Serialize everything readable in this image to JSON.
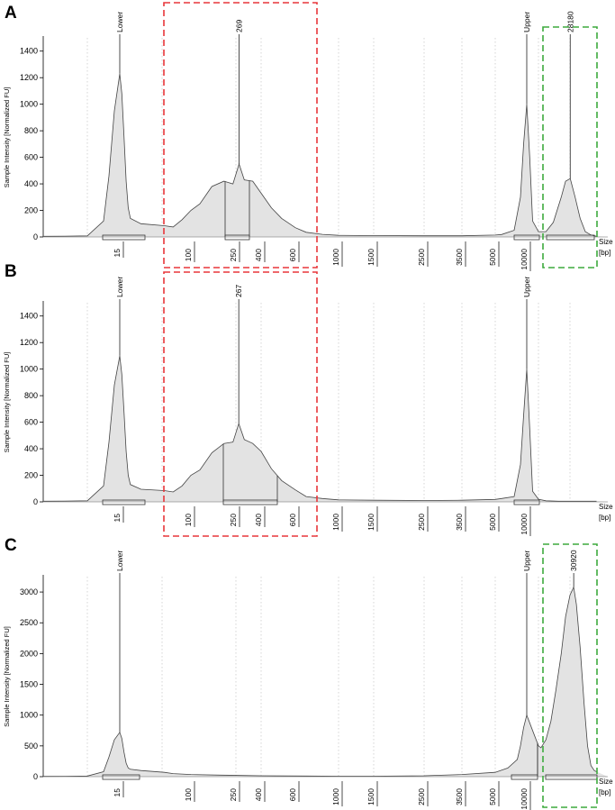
{
  "chart_data": [
    {
      "panel": "A",
      "type": "line",
      "ylabel": "Sample Intensity [Normalized FU]",
      "xlabel_1": "Size",
      "xlabel_2": "[bp]",
      "ylim": [
        0,
        1500
      ],
      "yticks": [
        0,
        200,
        400,
        600,
        800,
        1000,
        1200,
        1400
      ],
      "x_tick_labels": [
        "15",
        "100",
        "250",
        "400",
        "600",
        "1000",
        "1500",
        "2500",
        "3500",
        "5000",
        "10000"
      ],
      "peak_labels": [
        {
          "label": "Lower",
          "x": 15,
          "value": 1230
        },
        {
          "label": "269",
          "x": 269,
          "value": 550
        },
        {
          "label": "Upper",
          "x": 10000,
          "value": 1000
        },
        {
          "label": "28180",
          "x": 28180,
          "value": 440
        }
      ],
      "series": [
        {
          "name": "Sample",
          "points": [
            [
              1,
              5
            ],
            [
              5,
              6
            ],
            [
              9,
              8
            ],
            [
              12,
              120
            ],
            [
              13,
              460
            ],
            [
              14,
              950
            ],
            [
              15,
              1230
            ],
            [
              16,
              1080
            ],
            [
              17,
              760
            ],
            [
              18,
              420
            ],
            [
              19,
              220
            ],
            [
              20,
              140
            ],
            [
              25,
              100
            ],
            [
              40,
              85
            ],
            [
              60,
              75
            ],
            [
              80,
              130
            ],
            [
              100,
              200
            ],
            [
              130,
              250
            ],
            [
              170,
              380
            ],
            [
              210,
              420
            ],
            [
              240,
              400
            ],
            [
              269,
              550
            ],
            [
              300,
              430
            ],
            [
              350,
              420
            ],
            [
              400,
              330
            ],
            [
              460,
              220
            ],
            [
              520,
              140
            ],
            [
              600,
              70
            ],
            [
              700,
              35
            ],
            [
              850,
              20
            ],
            [
              1000,
              12
            ],
            [
              1500,
              10
            ],
            [
              2500,
              9
            ],
            [
              3500,
              9
            ],
            [
              5000,
              14
            ],
            [
              6000,
              18
            ],
            [
              8000,
              50
            ],
            [
              9000,
              300
            ],
            [
              9500,
              700
            ],
            [
              10000,
              1000
            ],
            [
              10500,
              600
            ],
            [
              11000,
              120
            ],
            [
              12000,
              40
            ],
            [
              15000,
              40
            ],
            [
              18000,
              110
            ],
            [
              22000,
              300
            ],
            [
              25000,
              420
            ],
            [
              28180,
              440
            ],
            [
              32000,
              300
            ],
            [
              36000,
              140
            ],
            [
              40000,
              40
            ],
            [
              45000,
              15
            ],
            [
              50000,
              5
            ]
          ]
        }
      ],
      "highlight_boxes": [
        {
          "color": "#e8363a",
          "range": [
            60,
            700
          ]
        },
        {
          "color": "#3daa3d",
          "range": [
            20000,
            60000
          ]
        }
      ]
    },
    {
      "panel": "B",
      "type": "line",
      "ylabel": "Sample Intensity [Normalized FU]",
      "xlabel_1": "Size",
      "xlabel_2": "[bp]",
      "ylim": [
        0,
        1500
      ],
      "yticks": [
        0,
        200,
        400,
        600,
        800,
        1000,
        1200,
        1400
      ],
      "x_tick_labels": [
        "15",
        "100",
        "250",
        "400",
        "600",
        "1000",
        "1500",
        "2500",
        "3500",
        "5000",
        "10000"
      ],
      "peak_labels": [
        {
          "label": "Lower",
          "x": 15,
          "value": 1100
        },
        {
          "label": "267",
          "x": 267,
          "value": 590
        },
        {
          "label": "Upper",
          "x": 10000,
          "value": 1000
        }
      ],
      "series": [
        {
          "name": "Sample",
          "points": [
            [
              1,
              5
            ],
            [
              5,
              6
            ],
            [
              9,
              8
            ],
            [
              12,
              120
            ],
            [
              13,
              450
            ],
            [
              14,
              880
            ],
            [
              15,
              1100
            ],
            [
              16,
              960
            ],
            [
              17,
              680
            ],
            [
              18,
              380
            ],
            [
              19,
              200
            ],
            [
              20,
              130
            ],
            [
              25,
              95
            ],
            [
              40,
              85
            ],
            [
              60,
              75
            ],
            [
              80,
              120
            ],
            [
              100,
              200
            ],
            [
              130,
              240
            ],
            [
              170,
              370
            ],
            [
              210,
              440
            ],
            [
              240,
              450
            ],
            [
              267,
              590
            ],
            [
              300,
              470
            ],
            [
              350,
              440
            ],
            [
              400,
              380
            ],
            [
              460,
              250
            ],
            [
              520,
              160
            ],
            [
              600,
              90
            ],
            [
              700,
              40
            ],
            [
              850,
              25
            ],
            [
              1000,
              15
            ],
            [
              1500,
              12
            ],
            [
              2500,
              10
            ],
            [
              3500,
              12
            ],
            [
              5000,
              18
            ],
            [
              6000,
              25
            ],
            [
              8000,
              40
            ],
            [
              9000,
              280
            ],
            [
              9500,
              650
            ],
            [
              10000,
              1000
            ],
            [
              10500,
              550
            ],
            [
              11000,
              80
            ],
            [
              12000,
              20
            ],
            [
              15000,
              8
            ],
            [
              20000,
              5
            ],
            [
              30000,
              5
            ],
            [
              50000,
              5
            ]
          ]
        }
      ],
      "highlight_boxes": [
        {
          "color": "#e8363a",
          "range": [
            60,
            700
          ]
        }
      ]
    },
    {
      "panel": "C",
      "type": "line",
      "ylabel": "Sample Intensity [Normalized FU]",
      "xlabel_1": "Size",
      "xlabel_2": "[bp]",
      "ylim": [
        0,
        3250
      ],
      "yticks": [
        0,
        500,
        1000,
        1500,
        2000,
        2500,
        3000
      ],
      "x_tick_labels": [
        "15",
        "100",
        "250",
        "400",
        "600",
        "1000",
        "1500",
        "2500",
        "3500",
        "5000",
        "10000"
      ],
      "peak_labels": [
        {
          "label": "Lower",
          "x": 15,
          "value": 720
        },
        {
          "label": "Upper",
          "x": 10000,
          "value": 1000
        },
        {
          "label": "30920",
          "x": 30920,
          "value": 3080
        }
      ],
      "series": [
        {
          "name": "Sample",
          "points": [
            [
              1,
              5
            ],
            [
              5,
              6
            ],
            [
              9,
              10
            ],
            [
              12,
              80
            ],
            [
              13,
              320
            ],
            [
              14,
              600
            ],
            [
              15,
              720
            ],
            [
              16,
              620
            ],
            [
              17,
              400
            ],
            [
              18,
              220
            ],
            [
              19,
              140
            ],
            [
              20,
              120
            ],
            [
              25,
              100
            ],
            [
              40,
              70
            ],
            [
              60,
              50
            ],
            [
              100,
              35
            ],
            [
              200,
              25
            ],
            [
              400,
              15
            ],
            [
              700,
              10
            ],
            [
              1000,
              8
            ],
            [
              1500,
              8
            ],
            [
              2500,
              15
            ],
            [
              3500,
              35
            ],
            [
              5000,
              70
            ],
            [
              7000,
              140
            ],
            [
              8500,
              280
            ],
            [
              9000,
              500
            ],
            [
              9500,
              800
            ],
            [
              10000,
              1000
            ],
            [
              11000,
              750
            ],
            [
              12000,
              500
            ],
            [
              13000,
              470
            ],
            [
              15000,
              600
            ],
            [
              17000,
              900
            ],
            [
              19000,
              1400
            ],
            [
              22000,
              2000
            ],
            [
              25000,
              2600
            ],
            [
              28000,
              2950
            ],
            [
              30920,
              3080
            ],
            [
              33000,
              2800
            ],
            [
              36000,
              2100
            ],
            [
              39000,
              1200
            ],
            [
              42000,
              500
            ],
            [
              45000,
              180
            ],
            [
              48000,
              100
            ],
            [
              50000,
              80
            ]
          ]
        }
      ],
      "highlight_boxes": [
        {
          "color": "#3daa3d",
          "range": [
            20000,
            60000
          ]
        }
      ]
    }
  ]
}
